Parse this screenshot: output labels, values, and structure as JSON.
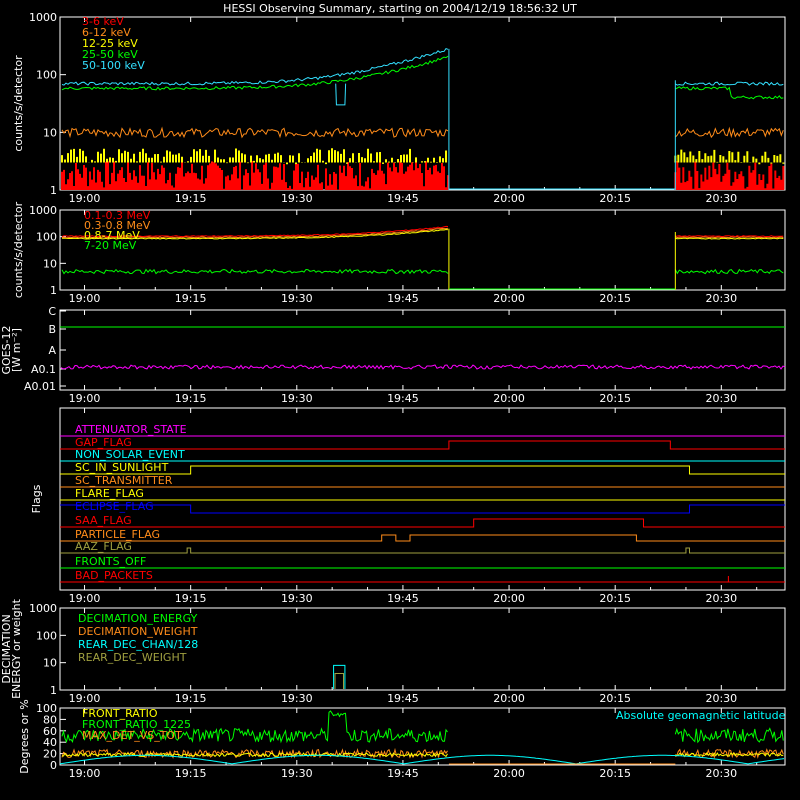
{
  "title": "HESSI Observing Summary, starting on 2004/12/19 18:56:32 UT",
  "x_ticks": [
    "19:00",
    "19:15",
    "19:30",
    "19:45",
    "20:00",
    "20:15",
    "20:30"
  ],
  "colors": {
    "axis": "#ffffff",
    "red": "#ff0000",
    "orange": "#ff8c1a",
    "yellow": "#ffff00",
    "green": "#00ff00",
    "cyan": "#33e0ff",
    "magenta": "#ff00ff",
    "blue": "#0000ff",
    "olive": "#a0a040",
    "ltcyan": "#00ffff"
  },
  "chart_data": [
    {
      "id": "lo",
      "type": "line",
      "ylabel": "counts/s/detector",
      "yscale": "log",
      "ylim": [
        1,
        1000
      ],
      "yticks": [
        "1",
        "10",
        "100",
        "1000"
      ],
      "series": [
        {
          "name": "3-6 keV",
          "color": "red",
          "level": 2
        },
        {
          "name": "6-12 keV",
          "color": "orange",
          "level": 10
        },
        {
          "name": "12-25 keV",
          "color": "yellow",
          "level": 4
        },
        {
          "name": "25-50 keV",
          "color": "green",
          "level": 60
        },
        {
          "name": "50-100 keV",
          "color": "cyan",
          "level": 72
        }
      ]
    },
    {
      "id": "hi",
      "type": "line",
      "ylabel": "counts/s/detector",
      "yscale": "log",
      "ylim": [
        1,
        1000
      ],
      "yticks": [
        "1",
        "10",
        "100",
        "1000"
      ],
      "series": [
        {
          "name": "0.1-0.3 MeV",
          "color": "red",
          "level": 110
        },
        {
          "name": "0.3-0.8 MeV",
          "color": "orange",
          "level": 95
        },
        {
          "name": "0.8-7 MeV",
          "color": "yellow",
          "level": 85
        },
        {
          "name": "7-20 MeV",
          "color": "green",
          "level": 5
        }
      ]
    },
    {
      "id": "goes",
      "type": "line",
      "ylabel": "GOES-12",
      "ylabel2": "[W m⁻²]",
      "yticks": [
        "A0.01",
        "A0.1",
        "A",
        "B",
        "C"
      ],
      "series": [
        {
          "name": "",
          "color": "green",
          "level": "B"
        },
        {
          "name": "",
          "color": "magenta",
          "level": "A0.1"
        }
      ]
    },
    {
      "id": "flags",
      "type": "line",
      "ylabel": "Flags",
      "series": [
        {
          "name": "ATTENUATOR_STATE",
          "color": "magenta"
        },
        {
          "name": "GAP_FLAG",
          "color": "red"
        },
        {
          "name": "NON_SOLAR_EVENT",
          "color": "ltcyan"
        },
        {
          "name": "SC_IN_SUNLIGHT",
          "color": "yellow"
        },
        {
          "name": "SC_TRANSMITTER",
          "color": "orange"
        },
        {
          "name": "FLARE_FLAG",
          "color": "yellow"
        },
        {
          "name": "ECLIPSE_FLAG",
          "color": "blue"
        },
        {
          "name": "SAA_FLAG",
          "color": "red"
        },
        {
          "name": "PARTICLE_FLAG",
          "color": "orange"
        },
        {
          "name": "AAZ_FLAG",
          "color": "olive"
        },
        {
          "name": "FRONTS_OFF",
          "color": "green"
        },
        {
          "name": "BAD_PACKETS",
          "color": "red"
        }
      ]
    },
    {
      "id": "dec",
      "type": "line",
      "ylabel": "DECIMATION",
      "ylabel2": "ENERGY or weight",
      "yscale": "log",
      "ylim": [
        1,
        1000
      ],
      "yticks": [
        "1",
        "10",
        "100",
        "1000"
      ],
      "series": [
        {
          "name": "DECIMATION_ENERGY",
          "color": "green"
        },
        {
          "name": "DECIMATION_WEIGHT",
          "color": "orange"
        },
        {
          "name": "REAR_DEC_CHAN/128",
          "color": "ltcyan"
        },
        {
          "name": "REAR_DEC_WEIGHT",
          "color": "olive"
        }
      ]
    },
    {
      "id": "ratio",
      "type": "line",
      "ylabel": "Degrees or %",
      "ylim": [
        0,
        100
      ],
      "yticks": [
        "0",
        "20",
        "40",
        "60",
        "80",
        "100"
      ],
      "series": [
        {
          "name": "FRONT_RATIO",
          "color": "yellow",
          "level": 20
        },
        {
          "name": "FRONT_RATIO_1225",
          "color": "green",
          "level": 55
        },
        {
          "name": "MAX_DET_VS_TOT",
          "color": "orange",
          "level": 20
        },
        {
          "name": "Absolute geomagnetic latitude",
          "color": "ltcyan"
        }
      ]
    }
  ]
}
